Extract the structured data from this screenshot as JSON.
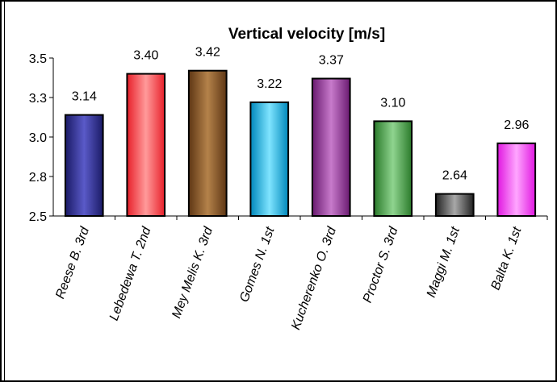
{
  "chart_data": {
    "type": "bar",
    "title": "Vertical velocity  [m/s]",
    "xlabel": "",
    "ylabel": "",
    "ylim": [
      2.5,
      3.5
    ],
    "yticks": [
      "2.5",
      "2.8",
      "3.0",
      "3.3",
      "3.5"
    ],
    "ytick_values": [
      2.5,
      2.75,
      3.0,
      3.25,
      3.5
    ],
    "grid": false,
    "legend": "none",
    "categories": [
      "Reese B. 3rd",
      "Lebedewa T. 2nd",
      "Mey Melis K. 3rd",
      "Gomes N. 1st",
      "Kucherenko O. 3rd",
      "Proctor S. 3rd",
      "Maggi M. 1st",
      "Balta K. 1st"
    ],
    "values": [
      3.14,
      3.4,
      3.42,
      3.22,
      3.37,
      3.1,
      2.64,
      2.96
    ],
    "data_labels": [
      "3.14",
      "3.40",
      "3.42",
      "3.22",
      "3.37",
      "3.10",
      "2.64",
      "2.96"
    ],
    "bar_colors": [
      {
        "dark": "#1a1a66",
        "light": "#5a5ac8"
      },
      {
        "dark": "#e8202a",
        "light": "#ff9a9a"
      },
      {
        "dark": "#5e3614",
        "light": "#b4824a"
      },
      {
        "dark": "#0088bb",
        "light": "#7fe4ff"
      },
      {
        "dark": "#6a1a70",
        "light": "#c77acb"
      },
      {
        "dark": "#2a7a2a",
        "light": "#8fd48f"
      },
      {
        "dark": "#222222",
        "light": "#a8a8a8"
      },
      {
        "dark": "#e018e0",
        "light": "#ffa6ff"
      }
    ]
  }
}
